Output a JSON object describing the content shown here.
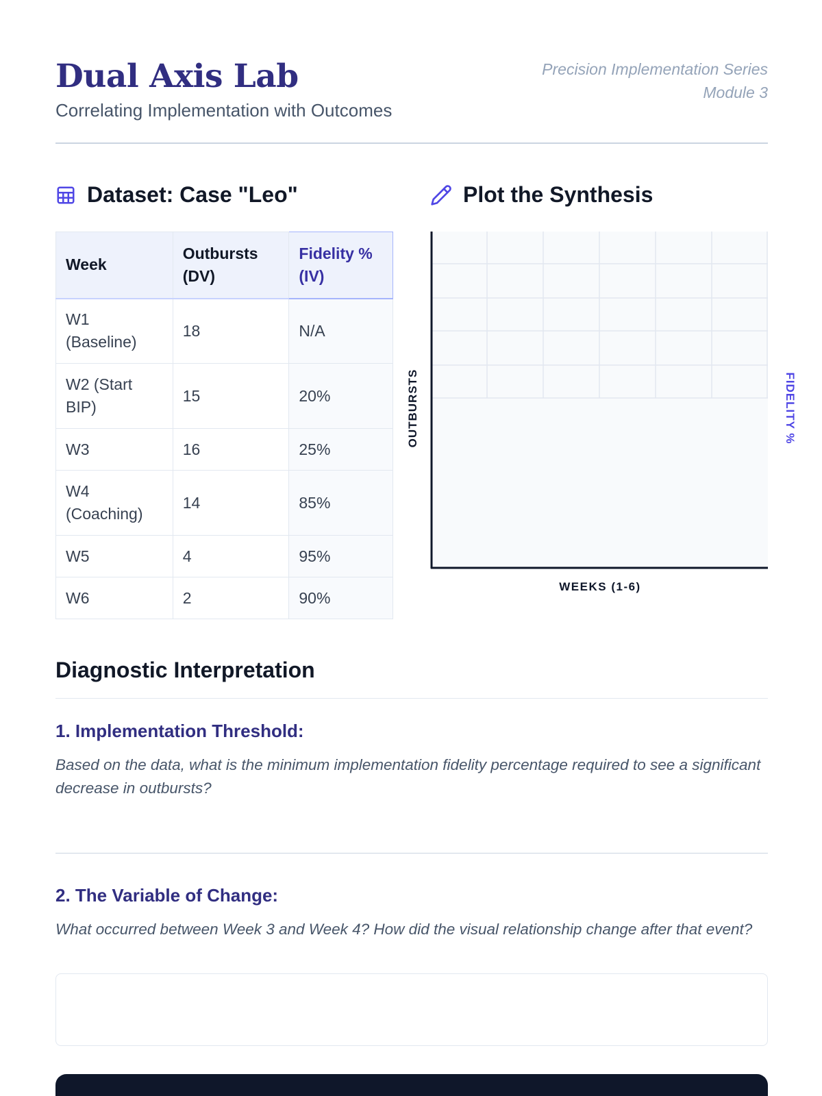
{
  "header": {
    "title": "Dual Axis Lab",
    "subtitle": "Correlating Implementation with Outcomes",
    "series": "Precision Implementation Series",
    "module": "Module 3"
  },
  "dataset": {
    "heading": "Dataset: Case \"Leo\"",
    "icon": "table-icon",
    "columns": [
      "Week",
      "Outbursts (DV)",
      "Fidelity % (IV)"
    ],
    "rows": [
      [
        "W1 (Baseline)",
        "18",
        "N/A"
      ],
      [
        "W2 (Start BIP)",
        "15",
        "20%"
      ],
      [
        "W3",
        "16",
        "25%"
      ],
      [
        "W4 (Coaching)",
        "14",
        "85%"
      ],
      [
        "W5",
        "4",
        "95%"
      ],
      [
        "W6",
        "2",
        "90%"
      ]
    ]
  },
  "plot": {
    "heading": "Plot the Synthesis",
    "icon": "pencil-icon",
    "y_left_label": "OUTBURSTS",
    "y_right_label": "FIDELITY %",
    "x_label": "WEEKS (1-6)",
    "colors": {
      "axis": "#0f172a",
      "grid": "#e2e8f0",
      "right_label": "#4f46e5",
      "area": "#f8fafc"
    }
  },
  "chart_data": {
    "type": "line",
    "title": "",
    "xlabel": "WEEKS (1-6)",
    "ylabel": "OUTBURSTS",
    "y2label": "FIDELITY %",
    "grid": true,
    "series": []
  },
  "diagnostic": {
    "heading": "Diagnostic Interpretation",
    "q1_title": "1. Implementation Threshold:",
    "q1_text": "Based on the data, what is the minimum implementation fidelity percentage required to see a significant decrease in outbursts?",
    "q2_title": "2. The Variable of Change:",
    "q2_text": "What occurred between Week 3 and Week 4? How did the visual relationship change after that event?",
    "q2_answer": ""
  }
}
